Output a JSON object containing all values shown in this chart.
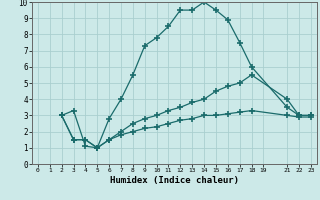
{
  "title": "",
  "xlabel": "Humidex (Indice chaleur)",
  "ylabel": "",
  "bg_color": "#cce9e8",
  "grid_color": "#aacfcf",
  "line_color": "#1a6b6b",
  "xlim": [
    -0.5,
    23.5
  ],
  "ylim": [
    0,
    10
  ],
  "xticks": [
    0,
    1,
    2,
    3,
    4,
    5,
    6,
    7,
    8,
    9,
    10,
    11,
    12,
    13,
    14,
    15,
    16,
    17,
    18,
    19,
    21,
    22,
    23
  ],
  "yticks": [
    0,
    1,
    2,
    3,
    4,
    5,
    6,
    7,
    8,
    9,
    10
  ],
  "series1_x": [
    2,
    3,
    4,
    5,
    6,
    7,
    8,
    9,
    10,
    11,
    12,
    13,
    14,
    15,
    16,
    17,
    18,
    21,
    22,
    23
  ],
  "series1_y": [
    3.0,
    3.3,
    1.1,
    1.0,
    2.8,
    4.0,
    5.5,
    7.3,
    7.8,
    8.5,
    9.5,
    9.5,
    10.0,
    9.5,
    8.9,
    7.5,
    6.0,
    3.5,
    3.0,
    3.0
  ],
  "series2_x": [
    2,
    3,
    4,
    5,
    6,
    7,
    8,
    9,
    10,
    11,
    12,
    13,
    14,
    15,
    16,
    17,
    18,
    21,
    22,
    23
  ],
  "series2_y": [
    3.0,
    1.5,
    1.5,
    1.0,
    1.5,
    2.0,
    2.5,
    2.8,
    3.0,
    3.3,
    3.5,
    3.8,
    4.0,
    4.5,
    4.8,
    5.0,
    5.5,
    4.0,
    3.0,
    3.0
  ],
  "series3_x": [
    2,
    3,
    4,
    5,
    6,
    7,
    8,
    9,
    10,
    11,
    12,
    13,
    14,
    15,
    16,
    17,
    18,
    21,
    22,
    23
  ],
  "series3_y": [
    3.0,
    1.5,
    1.5,
    1.0,
    1.5,
    1.8,
    2.0,
    2.2,
    2.3,
    2.5,
    2.7,
    2.8,
    3.0,
    3.0,
    3.1,
    3.2,
    3.3,
    3.0,
    2.9,
    2.9
  ]
}
